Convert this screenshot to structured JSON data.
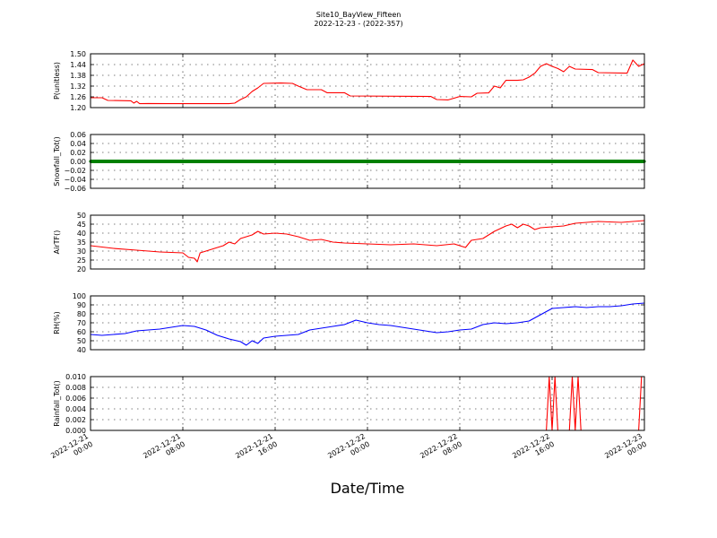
{
  "title": "Site10_BayView_Fifteen",
  "subtitle": "2022-12-23 - (2022-357)",
  "xlabel": "Date/Time",
  "chart_data": {
    "type": "line",
    "title": "Site10_BayView_Fifteen",
    "subtitle": "2022-12-23 - (2022-357)",
    "xlabel": "Date/Time",
    "x_range": [
      "2022-12-21 00:00",
      "2022-12-23 00:00"
    ],
    "x_ticks": [
      {
        "value": "2022-12-21 00:00",
        "date": "2022-12-21",
        "time": "00:00"
      },
      {
        "value": "2022-12-21 08:00",
        "date": "2022-12-21",
        "time": "08:00"
      },
      {
        "value": "2022-12-21 16:00",
        "date": "2022-12-21",
        "time": "16:00"
      },
      {
        "value": "2022-12-22 00:00",
        "date": "2022-12-22",
        "time": "00:00"
      },
      {
        "value": "2022-12-22 08:00",
        "date": "2022-12-22",
        "time": "08:00"
      },
      {
        "value": "2022-12-22 16:00",
        "date": "2022-12-22",
        "time": "16:00"
      },
      {
        "value": "2022-12-23 00:00",
        "date": "2022-12-23",
        "time": "00:00"
      }
    ],
    "grid": true,
    "panels": [
      {
        "ylabel": "P(unitless)",
        "ylim": [
          1.2,
          1.5
        ],
        "yticks": [
          "1.50",
          "1.44",
          "1.38",
          "1.32",
          "1.26",
          "1.20"
        ],
        "color": "#ff0000",
        "points": [
          [
            "2022-12-21 00:00",
            1.255
          ],
          [
            "2022-12-21 01:00",
            1.255
          ],
          [
            "2022-12-21 01:30",
            1.24
          ],
          [
            "2022-12-21 03:30",
            1.238
          ],
          [
            "2022-12-21 03:45",
            1.225
          ],
          [
            "2022-12-21 04:00",
            1.235
          ],
          [
            "2022-12-21 04:15",
            1.222
          ],
          [
            "2022-12-21 05:00",
            1.223
          ],
          [
            "2022-12-21 07:00",
            1.222
          ],
          [
            "2022-12-21 09:00",
            1.222
          ],
          [
            "2022-12-21 12:00",
            1.222
          ],
          [
            "2022-12-21 12:30",
            1.225
          ],
          [
            "2022-12-21 13:00",
            1.245
          ],
          [
            "2022-12-21 13:30",
            1.26
          ],
          [
            "2022-12-21 14:00",
            1.29
          ],
          [
            "2022-12-21 14:30",
            1.31
          ],
          [
            "2022-12-21 15:00",
            1.335
          ],
          [
            "2022-12-21 16:30",
            1.337
          ],
          [
            "2022-12-21 17:30",
            1.335
          ],
          [
            "2022-12-21 18:00",
            1.32
          ],
          [
            "2022-12-21 18:45",
            1.3
          ],
          [
            "2022-12-21 20:00",
            1.3
          ],
          [
            "2022-12-21 20:30",
            1.283
          ],
          [
            "2022-12-21 22:00",
            1.283
          ],
          [
            "2022-12-21 22:30",
            1.265
          ],
          [
            "2022-12-22 04:00",
            1.263
          ],
          [
            "2022-12-22 05:30",
            1.262
          ],
          [
            "2022-12-22 06:00",
            1.245
          ],
          [
            "2022-12-22 07:00",
            1.243
          ],
          [
            "2022-12-22 08:00",
            1.262
          ],
          [
            "2022-12-22 09:00",
            1.26
          ],
          [
            "2022-12-22 09:30",
            1.28
          ],
          [
            "2022-12-22 10:30",
            1.282
          ],
          [
            "2022-12-22 11:00",
            1.32
          ],
          [
            "2022-12-22 11:30",
            1.31
          ],
          [
            "2022-12-22 12:00",
            1.352
          ],
          [
            "2022-12-22 13:00",
            1.352
          ],
          [
            "2022-12-22 13:30",
            1.355
          ],
          [
            "2022-12-22 14:00",
            1.37
          ],
          [
            "2022-12-22 14:30",
            1.392
          ],
          [
            "2022-12-22 15:00",
            1.43
          ],
          [
            "2022-12-22 15:30",
            1.445
          ],
          [
            "2022-12-22 16:00",
            1.43
          ],
          [
            "2022-12-22 16:30",
            1.418
          ],
          [
            "2022-12-22 17:00",
            1.4
          ],
          [
            "2022-12-22 17:30",
            1.43
          ],
          [
            "2022-12-22 18:00",
            1.415
          ],
          [
            "2022-12-22 19:30",
            1.412
          ],
          [
            "2022-12-22 20:00",
            1.395
          ],
          [
            "2022-12-22 22:30",
            1.392
          ],
          [
            "2022-12-22 23:00",
            1.465
          ],
          [
            "2022-12-22 23:30",
            1.43
          ],
          [
            "2022-12-23 00:00",
            1.445
          ]
        ]
      },
      {
        "ylabel": "Snowfall_Tot()",
        "ylim": [
          -0.06,
          0.06
        ],
        "yticks": [
          "0.06",
          "0.04",
          "0.02",
          "0.00",
          "−0.02",
          "−0.04",
          "−0.06"
        ],
        "color": "#008000",
        "points": [
          [
            "2022-12-21 00:00",
            0.0
          ],
          [
            "2022-12-23 00:00",
            0.0
          ]
        ]
      },
      {
        "ylabel": "AirTF()",
        "ylim": [
          20,
          50
        ],
        "yticks": [
          "50",
          "45",
          "40",
          "35",
          "30",
          "25",
          "20"
        ],
        "color": "#ff0000",
        "points": [
          [
            "2022-12-21 00:00",
            33
          ],
          [
            "2022-12-21 02:00",
            31.5
          ],
          [
            "2022-12-21 04:00",
            30.5
          ],
          [
            "2022-12-21 06:00",
            29.5
          ],
          [
            "2022-12-21 08:00",
            29
          ],
          [
            "2022-12-21 08:30",
            26.5
          ],
          [
            "2022-12-21 09:00",
            26
          ],
          [
            "2022-12-21 09:15",
            24
          ],
          [
            "2022-12-21 09:30",
            29
          ],
          [
            "2022-12-21 10:00",
            30
          ],
          [
            "2022-12-21 11:00",
            32
          ],
          [
            "2022-12-21 11:30",
            33
          ],
          [
            "2022-12-21 12:00",
            35
          ],
          [
            "2022-12-21 12:30",
            34
          ],
          [
            "2022-12-21 13:00",
            37
          ],
          [
            "2022-12-21 14:00",
            39
          ],
          [
            "2022-12-21 14:30",
            41
          ],
          [
            "2022-12-21 15:00",
            39.5
          ],
          [
            "2022-12-21 16:00",
            40
          ],
          [
            "2022-12-21 17:00",
            39.5
          ],
          [
            "2022-12-21 18:00",
            38
          ],
          [
            "2022-12-21 19:00",
            36
          ],
          [
            "2022-12-21 20:00",
            36.5
          ],
          [
            "2022-12-21 21:00",
            35
          ],
          [
            "2022-12-21 22:00",
            34.5
          ],
          [
            "2022-12-22 00:00",
            34
          ],
          [
            "2022-12-22 02:00",
            33.5
          ],
          [
            "2022-12-22 04:00",
            34
          ],
          [
            "2022-12-22 06:00",
            33
          ],
          [
            "2022-12-22 07:30",
            34
          ],
          [
            "2022-12-22 08:30",
            32
          ],
          [
            "2022-12-22 09:00",
            36
          ],
          [
            "2022-12-22 10:00",
            37
          ],
          [
            "2022-12-22 11:00",
            41
          ],
          [
            "2022-12-22 12:00",
            44
          ],
          [
            "2022-12-22 12:30",
            45
          ],
          [
            "2022-12-22 13:00",
            43
          ],
          [
            "2022-12-22 13:30",
            45
          ],
          [
            "2022-12-22 14:00",
            44
          ],
          [
            "2022-12-22 14:30",
            42
          ],
          [
            "2022-12-22 15:00",
            43
          ],
          [
            "2022-12-22 16:00",
            43.5
          ],
          [
            "2022-12-22 17:00",
            44
          ],
          [
            "2022-12-22 18:00",
            45.5
          ],
          [
            "2022-12-22 20:00",
            46.5
          ],
          [
            "2022-12-22 22:00",
            46
          ],
          [
            "2022-12-23 00:00",
            47
          ]
        ]
      },
      {
        "ylabel": "RH(%)",
        "ylim": [
          40,
          100
        ],
        "yticks": [
          "100",
          "90",
          "80",
          "70",
          "60",
          "50",
          "40"
        ],
        "color": "#0000ff",
        "points": [
          [
            "2022-12-21 00:00",
            57
          ],
          [
            "2022-12-21 01:00",
            56
          ],
          [
            "2022-12-21 02:00",
            57
          ],
          [
            "2022-12-21 03:00",
            58
          ],
          [
            "2022-12-21 04:00",
            61
          ],
          [
            "2022-12-21 05:00",
            62
          ],
          [
            "2022-12-21 06:00",
            63
          ],
          [
            "2022-12-21 07:00",
            65
          ],
          [
            "2022-12-21 08:00",
            67
          ],
          [
            "2022-12-21 09:00",
            66
          ],
          [
            "2022-12-21 10:00",
            62
          ],
          [
            "2022-12-21 11:00",
            56
          ],
          [
            "2022-12-21 12:00",
            52
          ],
          [
            "2022-12-21 13:00",
            49
          ],
          [
            "2022-12-21 13:30",
            45
          ],
          [
            "2022-12-21 14:00",
            50
          ],
          [
            "2022-12-21 14:30",
            47
          ],
          [
            "2022-12-21 15:00",
            53
          ],
          [
            "2022-12-21 16:00",
            55
          ],
          [
            "2022-12-21 17:00",
            56
          ],
          [
            "2022-12-21 18:00",
            57
          ],
          [
            "2022-12-21 19:00",
            62
          ],
          [
            "2022-12-21 20:00",
            64
          ],
          [
            "2022-12-21 21:00",
            66
          ],
          [
            "2022-12-21 22:00",
            68
          ],
          [
            "2022-12-21 23:00",
            73
          ],
          [
            "2022-12-22 00:00",
            70
          ],
          [
            "2022-12-22 01:00",
            68
          ],
          [
            "2022-12-22 02:00",
            67
          ],
          [
            "2022-12-22 03:00",
            65
          ],
          [
            "2022-12-22 04:00",
            63
          ],
          [
            "2022-12-22 05:00",
            61
          ],
          [
            "2022-12-22 06:00",
            59
          ],
          [
            "2022-12-22 07:00",
            60
          ],
          [
            "2022-12-22 08:00",
            62
          ],
          [
            "2022-12-22 09:00",
            63
          ],
          [
            "2022-12-22 10:00",
            68
          ],
          [
            "2022-12-22 11:00",
            70
          ],
          [
            "2022-12-22 12:00",
            69
          ],
          [
            "2022-12-22 13:00",
            70
          ],
          [
            "2022-12-22 14:00",
            72
          ],
          [
            "2022-12-22 15:00",
            79
          ],
          [
            "2022-12-22 16:00",
            86
          ],
          [
            "2022-12-22 17:00",
            87
          ],
          [
            "2022-12-22 18:00",
            88
          ],
          [
            "2022-12-22 19:00",
            87
          ],
          [
            "2022-12-22 20:00",
            88
          ],
          [
            "2022-12-22 21:00",
            88
          ],
          [
            "2022-12-22 22:00",
            89
          ],
          [
            "2022-12-22 23:00",
            91
          ],
          [
            "2022-12-23 00:00",
            92
          ]
        ]
      },
      {
        "ylabel": "Rainfall_Tot()",
        "ylim": [
          0.0,
          0.01
        ],
        "yticks": [
          "0.010",
          "0.008",
          "0.006",
          "0.004",
          "0.002",
          "0.000"
        ],
        "color": "#ff0000",
        "points": [
          [
            "2022-12-21 00:00",
            0.0
          ],
          [
            "2022-12-22 15:30",
            0.0
          ],
          [
            "2022-12-22 15:45",
            0.01
          ],
          [
            "2022-12-22 16:00",
            0.0
          ],
          [
            "2022-12-22 16:15",
            0.01
          ],
          [
            "2022-12-22 16:30",
            0.0
          ],
          [
            "2022-12-22 17:30",
            0.0
          ],
          [
            "2022-12-22 17:45",
            0.01
          ],
          [
            "2022-12-22 18:00",
            0.0
          ],
          [
            "2022-12-22 18:15",
            0.01
          ],
          [
            "2022-12-22 18:30",
            0.0
          ],
          [
            "2022-12-22 23:30",
            0.0
          ],
          [
            "2022-12-22 23:45",
            0.01
          ]
        ]
      }
    ]
  }
}
